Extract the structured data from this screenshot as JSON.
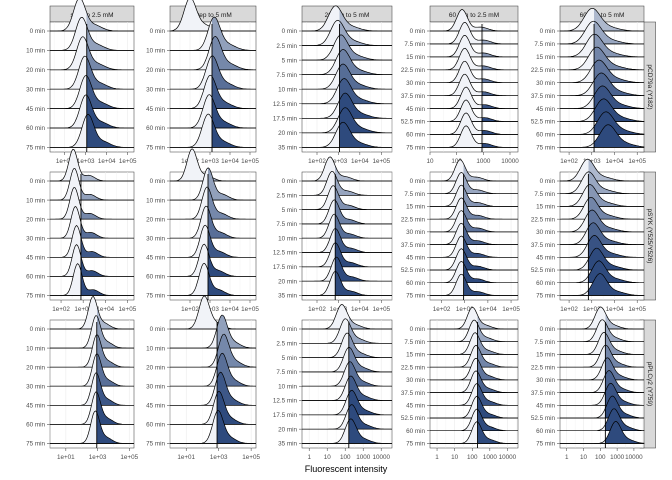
{
  "chart_data": {
    "type": "ridgeline",
    "xlabel": "Fluorescent intensity",
    "colors": {
      "light": "#f1f3f8",
      "dark": "#2e4a7d",
      "line": "#000000",
      "strip_bg": "#d9d9d9"
    },
    "columns": [
      "step to 2.5 mM",
      "step to 5 mM",
      "20 min to 5 mM",
      "60 min to 2.5 mM",
      "60 min to 5 mM"
    ],
    "rows": [
      "pCD79a (Y182)",
      "pSYK (Y525/Y526)",
      "pPLCγ2 (Y759)"
    ],
    "y_step": [
      "0 min",
      "10 min",
      "20 min",
      "30 min",
      "45 min",
      "60 min",
      "75 min"
    ],
    "y_20min": [
      "0 min",
      "2.5 min",
      "5 min",
      "7.5 min",
      "10 min",
      "12.5 min",
      "17.5 min",
      "20 min",
      "35 min"
    ],
    "y_60min": [
      "0 min",
      "7.5 min",
      "15 min",
      "22.5 min",
      "30 min",
      "37.5 min",
      "45 min",
      "52.5 min",
      "60 min",
      "75 min"
    ],
    "x_ticks": [
      [
        {
          "labels": [
            "1e+02",
            "1e+03",
            "1e+04",
            "1e+05"
          ],
          "range": [
            1.3,
            5.3
          ]
        },
        {
          "labels": [
            "1e+02",
            "1e+03",
            "1e+04",
            "1e+05"
          ],
          "range": [
            1.0,
            5.3
          ]
        },
        {
          "labels": [
            "1e+02",
            "1e+03",
            "1e+04",
            "1e+05"
          ],
          "range": [
            1.3,
            5.5
          ]
        },
        {
          "labels": [
            "10",
            "100",
            "1000",
            "10000"
          ],
          "range": [
            1.0,
            4.3
          ]
        },
        {
          "labels": [
            "1e+02",
            "1e+03",
            "1e+04",
            "1e+05"
          ],
          "range": [
            1.6,
            5.3
          ]
        }
      ],
      [
        {
          "labels": [
            "1e+02",
            "1e+03",
            "1e+04",
            "1e+05"
          ],
          "range": [
            1.5,
            5.3
          ]
        },
        {
          "labels": [
            "1e+02",
            "1e+03",
            "1e+04",
            "1e+05"
          ],
          "range": [
            1.0,
            5.3
          ]
        },
        {
          "labels": [
            "1e+02",
            "1e+03",
            "1e+04",
            "1e+05"
          ],
          "range": [
            1.3,
            5.5
          ]
        },
        {
          "labels": [
            "1e+02",
            "1e+03",
            "1e+04",
            "1e+05"
          ],
          "range": [
            1.5,
            5.3
          ]
        },
        {
          "labels": [
            "1e+02",
            "1e+03",
            "1e+04",
            "1e+05"
          ],
          "range": [
            1.6,
            5.3
          ]
        }
      ],
      [
        {
          "labels": [
            "1e+01",
            "1e+03",
            "1e+05"
          ],
          "range": [
            0.0,
            5.3
          ]
        },
        {
          "labels": [
            "1e+01",
            "1e+03",
            "1e+05"
          ],
          "range": [
            0.0,
            5.3
          ]
        },
        {
          "labels": [
            "1",
            "10",
            "100",
            "1000",
            "10000"
          ],
          "range": [
            -0.4,
            4.6
          ]
        },
        {
          "labels": [
            "1",
            "10",
            "100",
            "1000",
            "10000"
          ],
          "range": [
            -0.4,
            4.6
          ]
        },
        {
          "labels": [
            "1",
            "10",
            "100",
            "1000",
            "10000"
          ],
          "range": [
            -0.4,
            4.6
          ]
        }
      ]
    ],
    "thresholds": [
      [
        3.05,
        3.1,
        3.05,
        2.95,
        3.1
      ],
      [
        2.9,
        2.9,
        2.85,
        2.95,
        2.85
      ],
      [
        2.95,
        2.9,
        2.2,
        2.3,
        2.3
      ]
    ],
    "distributions": [
      [
        {
          "means": [
            2.7,
            2.8,
            2.85,
            2.95,
            3.0,
            3.0,
            3.1
          ],
          "sd": 0.28
        },
        {
          "means": [
            2.0,
            3.2,
            3.25,
            3.1,
            3.0,
            2.95,
            2.9
          ],
          "sd": 0.3
        },
        {
          "means": [
            2.85,
            2.95,
            3.1,
            3.2,
            3.2,
            3.25,
            3.3,
            3.3,
            3.2
          ],
          "sd": 0.32
        },
        {
          "means": [
            2.2,
            2.3,
            2.3,
            2.3,
            2.3,
            2.3,
            2.35,
            2.35,
            2.35,
            2.35
          ],
          "sd": 0.2
        },
        {
          "means": [
            3.0,
            3.05,
            3.1,
            3.2,
            3.3,
            3.4,
            3.45,
            3.5,
            3.6,
            3.7
          ],
          "sd": 0.35
        }
      ],
      [
        {
          "means": [
            2.55,
            2.6,
            2.6,
            2.65,
            2.7,
            2.7,
            2.75
          ],
          "sd": 0.2
        },
        {
          "means": [
            2.1,
            2.9,
            2.85,
            2.8,
            2.75,
            2.7,
            2.7
          ],
          "sd": 0.25
        },
        {
          "means": [
            2.6,
            2.7,
            2.75,
            2.8,
            2.8,
            2.85,
            2.85,
            2.9,
            2.85
          ],
          "sd": 0.24
        },
        {
          "means": [
            2.8,
            2.85,
            2.85,
            2.85,
            2.85,
            2.85,
            2.85,
            2.85,
            2.85,
            2.85
          ],
          "sd": 0.22
        },
        {
          "means": [
            2.8,
            2.85,
            2.9,
            2.95,
            3.0,
            3.05,
            3.1,
            3.2,
            3.3,
            3.35
          ],
          "sd": 0.3
        }
      ],
      [
        {
          "means": [
            2.7,
            2.9,
            2.95,
            2.95,
            2.9,
            2.9,
            2.85
          ],
          "sd": 0.28
        },
        {
          "means": [
            2.1,
            3.2,
            3.3,
            3.2,
            3.1,
            3.0,
            2.95
          ],
          "sd": 0.32
        },
        {
          "means": [
            1.8,
            2.0,
            2.1,
            2.2,
            2.25,
            2.3,
            2.35,
            2.35,
            2.3
          ],
          "sd": 0.3
        },
        {
          "means": [
            2.0,
            2.1,
            2.15,
            2.2,
            2.2,
            2.2,
            2.25,
            2.25,
            2.25,
            2.25
          ],
          "sd": 0.28
        },
        {
          "means": [
            2.0,
            2.1,
            2.2,
            2.3,
            2.4,
            2.5,
            2.6,
            2.7,
            2.8,
            2.9
          ],
          "sd": 0.32
        }
      ]
    ]
  }
}
